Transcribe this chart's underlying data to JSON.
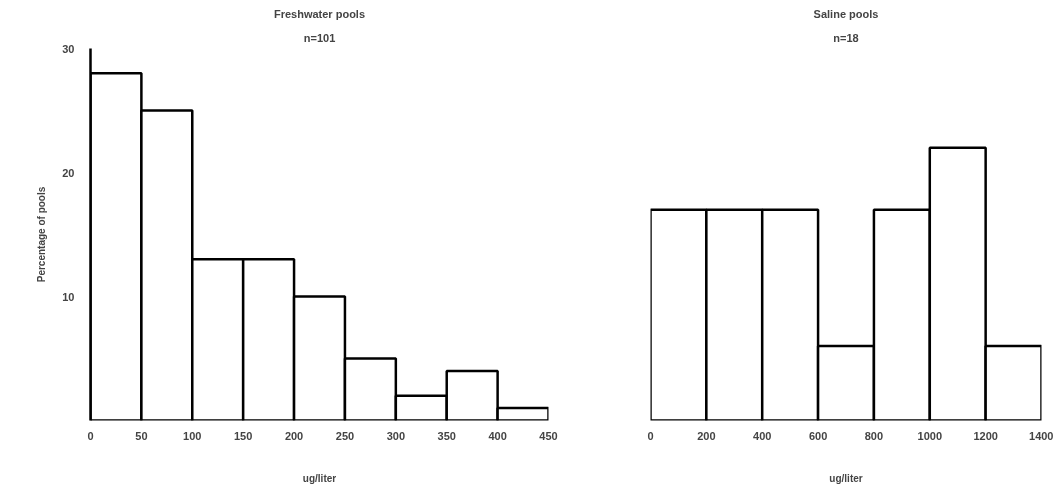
{
  "chart_data": [
    {
      "type": "histogram",
      "title": "Freshwater pools",
      "subtitle": "n=101",
      "xlabel": "ug/liter",
      "ylabel": "Percentage of pools",
      "bins": [
        0,
        50,
        100,
        150,
        200,
        250,
        300,
        350,
        400,
        450
      ],
      "values": [
        28,
        25,
        13,
        13,
        10,
        5,
        2,
        4,
        1
      ],
      "color": "#ffffff",
      "xlim": [
        0,
        450
      ],
      "xticks": [
        0,
        50,
        100,
        150,
        200,
        250,
        300,
        350,
        400,
        450
      ],
      "ylim": [
        0,
        30
      ],
      "yticks": [
        10,
        20,
        30
      ],
      "grid": false
    },
    {
      "type": "histogram",
      "title": "Saline pools",
      "subtitle": "n=18",
      "xlabel": "ug/liter",
      "bins": [
        0,
        200,
        400,
        600,
        800,
        1000,
        1200,
        1400
      ],
      "values": [
        17,
        17,
        17,
        6,
        17,
        22,
        6
      ],
      "color": "#ffffff",
      "xlim": [
        0,
        1400
      ],
      "xticks": [
        0,
        200,
        400,
        600,
        800,
        1000,
        1200,
        1400
      ],
      "ylim": [
        0,
        30
      ],
      "tick_labels": "x",
      "grid": false
    }
  ]
}
